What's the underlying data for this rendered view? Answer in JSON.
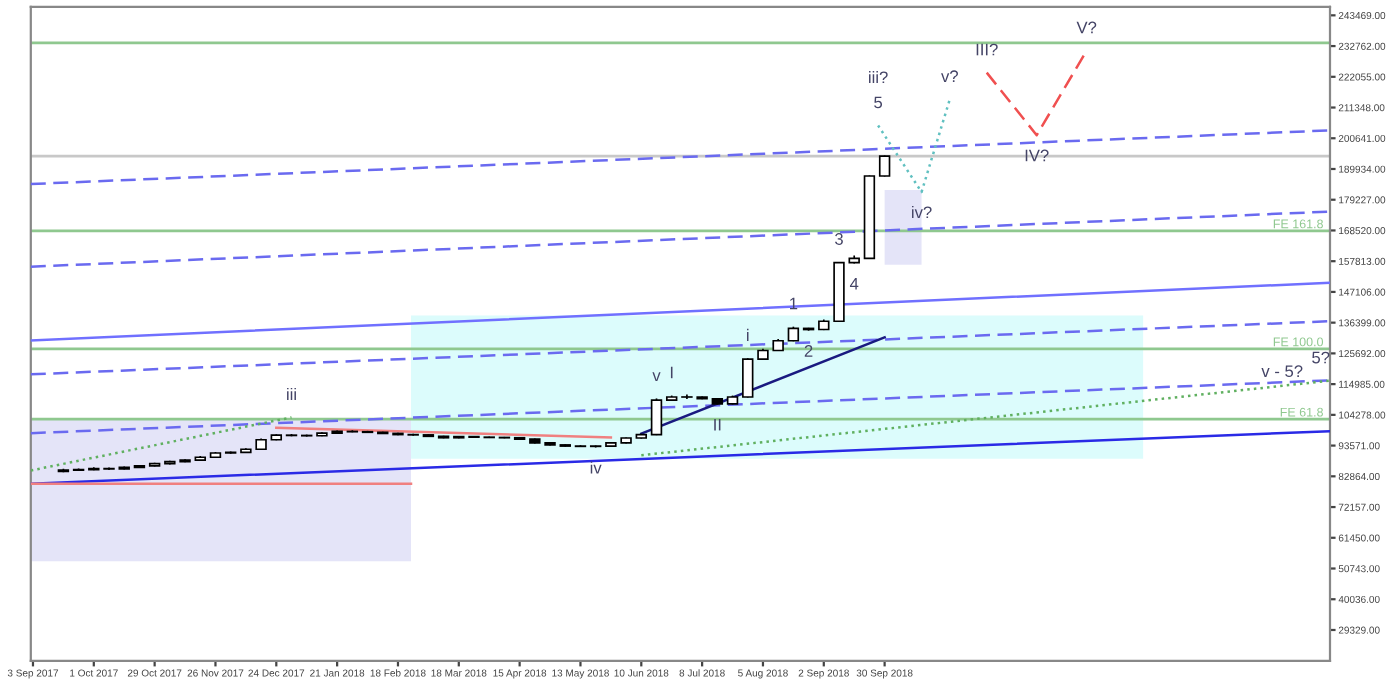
{
  "chart_data": {
    "type": "candlestick",
    "color": "#000000",
    "x": [
      "2017-09-17",
      "2017-09-24",
      "2017-10-01",
      "2017-10-08",
      "2017-10-15",
      "2017-10-22",
      "2017-10-29",
      "2017-11-05",
      "2017-11-12",
      "2017-11-19",
      "2017-11-26",
      "2017-12-03",
      "2017-12-10",
      "2017-12-17",
      "2017-12-24",
      "2017-12-31",
      "2018-01-07",
      "2018-01-14",
      "2018-01-21",
      "2018-01-28",
      "2018-02-04",
      "2018-02-11",
      "2018-02-18",
      "2018-02-25",
      "2018-03-04",
      "2018-03-11",
      "2018-03-18",
      "2018-03-25",
      "2018-04-01",
      "2018-04-08",
      "2018-04-15",
      "2018-04-22",
      "2018-04-29",
      "2018-05-06",
      "2018-05-13",
      "2018-05-20",
      "2018-05-27",
      "2018-06-03",
      "2018-06-10",
      "2018-06-17",
      "2018-06-24",
      "2018-07-01",
      "2018-07-08",
      "2018-07-15",
      "2018-07-22",
      "2018-07-29",
      "2018-08-05",
      "2018-08-12",
      "2018-08-19",
      "2018-08-26",
      "2018-09-02",
      "2018-09-09",
      "2018-09-16",
      "2018-09-23",
      "2018-09-30"
    ],
    "ohlc": [
      [
        84600,
        85500,
        84300,
        85000
      ],
      [
        85000,
        85600,
        84700,
        85200
      ],
      [
        85200,
        86000,
        85000,
        85600
      ],
      [
        85600,
        85900,
        85100,
        85400
      ],
      [
        85400,
        86300,
        85200,
        86000
      ],
      [
        86000,
        86800,
        85800,
        86500
      ],
      [
        86500,
        87600,
        86300,
        87300
      ],
      [
        87300,
        88300,
        87000,
        88000
      ],
      [
        88000,
        88800,
        87800,
        88500
      ],
      [
        88500,
        89900,
        88300,
        89500
      ],
      [
        89500,
        91300,
        89300,
        91000
      ],
      [
        91000,
        91500,
        90700,
        91200
      ],
      [
        91200,
        92600,
        91000,
        92300
      ],
      [
        92300,
        96000,
        92100,
        95600
      ],
      [
        95600,
        97500,
        95400,
        97200
      ],
      [
        97200,
        97600,
        96800,
        97100
      ],
      [
        97100,
        97400,
        96700,
        97000
      ],
      [
        97000,
        98200,
        96800,
        97900
      ],
      [
        97900,
        98800,
        97700,
        98500
      ],
      [
        98500,
        98900,
        98200,
        98400
      ],
      [
        98400,
        98700,
        98000,
        98200
      ],
      [
        98200,
        98400,
        97600,
        97800
      ],
      [
        97800,
        98000,
        97200,
        97400
      ],
      [
        97400,
        97700,
        97000,
        97300
      ],
      [
        97300,
        97500,
        96600,
        96800
      ],
      [
        96800,
        97000,
        96100,
        96300
      ],
      [
        96300,
        96900,
        96100,
        96700
      ],
      [
        96700,
        96900,
        96300,
        96500
      ],
      [
        96500,
        96700,
        96200,
        96400
      ],
      [
        96400,
        96600,
        96100,
        96300
      ],
      [
        96300,
        96400,
        95600,
        95800
      ],
      [
        95800,
        96000,
        94300,
        94500
      ],
      [
        94500,
        94700,
        93600,
        93800
      ],
      [
        93800,
        94000,
        93200,
        93400
      ],
      [
        93400,
        93700,
        93100,
        93300
      ],
      [
        93300,
        93600,
        92900,
        93400
      ],
      [
        93400,
        94800,
        93200,
        94500
      ],
      [
        94500,
        96400,
        94300,
        96200
      ],
      [
        96200,
        97700,
        96000,
        97400
      ],
      [
        97400,
        110000,
        97200,
        109400
      ],
      [
        109400,
        111000,
        109200,
        110500
      ],
      [
        110500,
        111400,
        109800,
        110500
      ],
      [
        110500,
        110700,
        109700,
        109900
      ],
      [
        109900,
        110100,
        107900,
        108100
      ],
      [
        108100,
        111000,
        107900,
        110500
      ],
      [
        110500,
        124000,
        110300,
        123700
      ],
      [
        123700,
        127300,
        123500,
        126700
      ],
      [
        126700,
        130700,
        126500,
        130100
      ],
      [
        130100,
        135000,
        129900,
        134400
      ],
      [
        134400,
        134600,
        133600,
        134000
      ],
      [
        134000,
        137500,
        133800,
        136900
      ],
      [
        136900,
        157500,
        136700,
        157300
      ],
      [
        157300,
        159800,
        157000,
        158800
      ],
      [
        158800,
        187700,
        158600,
        187500
      ],
      [
        187500,
        194600,
        187300,
        194400
      ]
    ],
    "series": [
      {
        "type": "line",
        "color": "#e4e4f8",
        "x": [
          "2017-09-02",
          "2018-02-24"
        ],
        "values": [
          null,
          null
        ],
        "upper": [
          102600,
          102600
        ],
        "lower": [
          53300,
          53300
        ]
      },
      {
        "type": "line",
        "color": "#dcfcfc",
        "x": [
          "2018-02-24",
          "2019-01-27"
        ],
        "values": [
          null,
          null
        ],
        "upper": [
          138900,
          138900
        ],
        "lower": [
          89000,
          89000
        ]
      },
      {
        "type": "line",
        "color": "#e4e4f8",
        "x": [
          "2018-09-30",
          "2018-10-17"
        ],
        "values": [
          null,
          null
        ],
        "upper": [
          182600,
          182600
        ],
        "lower": [
          156600,
          156600
        ]
      },
      {
        "type": "line",
        "color": "#2a2ae6",
        "line_style": "solid",
        "x": [
          "2017-09-02",
          "2019-04-23"
        ],
        "values": [
          80300,
          98600
        ]
      },
      {
        "type": "line",
        "color": "#7070ff",
        "line_style": "solid",
        "x": [
          "2017-09-02",
          "2019-04-23"
        ],
        "values": [
          130200,
          150300
        ]
      },
      {
        "type": "line",
        "color": "#6a6af0",
        "line_style": "dashed",
        "x": [
          "2017-09-02",
          "2019-04-23"
        ],
        "values": [
          97900,
          116300
        ]
      },
      {
        "type": "line",
        "color": "#6a6af0",
        "line_style": "dashed",
        "x": [
          "2017-09-02",
          "2019-04-23"
        ],
        "values": [
          118400,
          136900
        ]
      },
      {
        "type": "line",
        "color": "#6a6af0",
        "line_style": "dashed",
        "x": [
          "2017-09-02",
          "2019-04-23"
        ],
        "values": [
          155900,
          175100
        ]
      },
      {
        "type": "line",
        "color": "#6a6af0",
        "line_style": "dashed",
        "x": [
          "2017-09-02",
          "2019-04-23"
        ],
        "values": [
          184700,
          203400
        ]
      },
      {
        "type": "line",
        "color": "#1a1a80",
        "line_style": "solid",
        "x": [
          "2018-06-10",
          "2018-09-30"
        ],
        "values": [
          97700,
          131300
        ]
      },
      {
        "type": "line",
        "color": "#f08080",
        "line_style": "solid",
        "x": [
          "2017-09-02",
          "2018-02-24"
        ],
        "values": [
          80300,
          80300
        ]
      },
      {
        "type": "line",
        "color": "#f08080",
        "line_style": "solid",
        "x": [
          "2017-12-24",
          "2018-05-27"
        ],
        "values": [
          99800,
          96400
        ]
      },
      {
        "type": "line",
        "color": "#60b060",
        "line_style": "dotted",
        "x": [
          "2017-09-02",
          "2017-12-31"
        ],
        "values": [
          84900,
          103400
        ]
      },
      {
        "type": "line",
        "color": "#60b060",
        "line_style": "dotted",
        "x": [
          "2018-06-10",
          "2019-04-23"
        ],
        "values": [
          90200,
          116200
        ]
      },
      {
        "type": "line",
        "color": "#60c0c0",
        "line_style": "dotted",
        "x": [
          "2018-09-27",
          "2018-10-17",
          "2018-10-30"
        ],
        "values": [
          205100,
          181900,
          214200
        ]
      },
      {
        "type": "line",
        "color": "#f05050",
        "line_style": "dashed",
        "x": [
          "2018-11-16",
          "2018-12-09",
          "2019-01-01"
        ],
        "values": [
          223500,
          201700,
          231200
        ]
      }
    ],
    "ref_lines": [
      {
        "axis": "y",
        "value": 233900,
        "color": "#8fc88f"
      },
      {
        "axis": "y",
        "value": 194400,
        "color": "#c8c8c8"
      },
      {
        "axis": "y",
        "value": 168400,
        "label": "FE 161.8",
        "color": "#8fc88f"
      },
      {
        "axis": "y",
        "value": 127300,
        "label": "FE 100.0",
        "color": "#8fc88f"
      },
      {
        "axis": "y",
        "value": 102800,
        "label": "FE 61.8",
        "color": "#8fc88f"
      }
    ],
    "annotations": [
      {
        "text": "I",
        "x": "2018-06-24",
        "y": 111000
      },
      {
        "text": "II",
        "x": "2018-07-15",
        "y": 107900
      },
      {
        "text": "III?",
        "x": "2018-11-16",
        "y": 223500
      },
      {
        "text": "IV?",
        "x": "2018-12-09",
        "y": 201700
      },
      {
        "text": "V?",
        "x": "2019-01-01",
        "y": 231200
      },
      {
        "text": "1",
        "x": "2018-08-19",
        "y": 135000
      },
      {
        "text": "2",
        "x": "2018-08-26",
        "y": 133600
      },
      {
        "text": "3",
        "x": "2018-09-09",
        "y": 157500
      },
      {
        "text": "4",
        "x": "2018-09-16",
        "y": 157000
      },
      {
        "text": "5",
        "x": "2018-09-27",
        "y": 205100
      },
      {
        "text": "i",
        "x": "2018-07-29",
        "y": 124000
      },
      {
        "text": "iii?",
        "x": "2018-09-27",
        "y": 205100
      },
      {
        "text": "iv?",
        "x": "2018-10-17",
        "y": 181900
      },
      {
        "text": "v?",
        "x": "2018-10-30",
        "y": 214200
      },
      {
        "text": "v",
        "x": "2018-06-17",
        "y": 110000
      },
      {
        "text": "iv",
        "x": "2018-05-20",
        "y": 92900
      },
      {
        "text": "iii",
        "x": "2017-12-31",
        "y": 103400
      },
      {
        "text": "v - 5?",
        "x": "2019-04-01",
        "y": 119000
      },
      {
        "text": "5?",
        "x": "2019-04-23",
        "y": 116200
      }
    ],
    "xlim": [
      "2017-09-02",
      "2019-04-23"
    ],
    "xticks": [
      {
        "value": "2017-09-03",
        "label": "3 Sep 2017"
      },
      {
        "value": "2017-10-01",
        "label": "1 Oct 2017"
      },
      {
        "value": "2017-10-29",
        "label": "29 Oct 2017"
      },
      {
        "value": "2017-11-26",
        "label": "26 Nov 2017"
      },
      {
        "value": "2017-12-24",
        "label": "24 Dec 2017"
      },
      {
        "value": "2018-01-21",
        "label": "21 Jan 2018"
      },
      {
        "value": "2018-02-18",
        "label": "18 Feb 2018"
      },
      {
        "value": "2018-03-18",
        "label": "18 Mar 2018"
      },
      {
        "value": "2018-04-15",
        "label": "15 Apr 2018"
      },
      {
        "value": "2018-05-13",
        "label": "13 May 2018"
      },
      {
        "value": "2018-06-10",
        "label": "10 Jun 2018"
      },
      {
        "value": "2018-07-08",
        "label": "8 Jul 2018"
      },
      {
        "value": "2018-08-05",
        "label": "5 Aug 2018"
      },
      {
        "value": "2018-09-02",
        "label": "2 Sep 2018"
      },
      {
        "value": "2018-09-30",
        "label": "30 Sep 2018"
      }
    ],
    "ylim": [
      18570,
      246400
    ],
    "yticks": [
      {
        "value": 243469,
        "label": "243469.00"
      },
      {
        "value": 232762,
        "label": "232762.00"
      },
      {
        "value": 222055,
        "label": "222055.00"
      },
      {
        "value": 211348,
        "label": "211348.00"
      },
      {
        "value": 200641,
        "label": "200641.00"
      },
      {
        "value": 189934,
        "label": "189934.00"
      },
      {
        "value": 179227,
        "label": "179227.00"
      },
      {
        "value": 168520,
        "label": "168520.00"
      },
      {
        "value": 157813,
        "label": "157813.00"
      },
      {
        "value": 147106,
        "label": "147106.00"
      },
      {
        "value": 136399,
        "label": "136399.00"
      },
      {
        "value": 125692,
        "label": "125692.00"
      },
      {
        "value": 114985,
        "label": "114985.00"
      },
      {
        "value": 104278,
        "label": "104278.00"
      },
      {
        "value": 93571,
        "label": "93571.00"
      },
      {
        "value": 82864,
        "label": "82864.00"
      },
      {
        "value": 72157,
        "label": "72157.00"
      },
      {
        "value": 61450,
        "label": "61450.00"
      },
      {
        "value": 50743,
        "label": "50743.00"
      },
      {
        "value": 40036,
        "label": "40036.00"
      },
      {
        "value": 29329,
        "label": "29329.00"
      }
    ]
  }
}
